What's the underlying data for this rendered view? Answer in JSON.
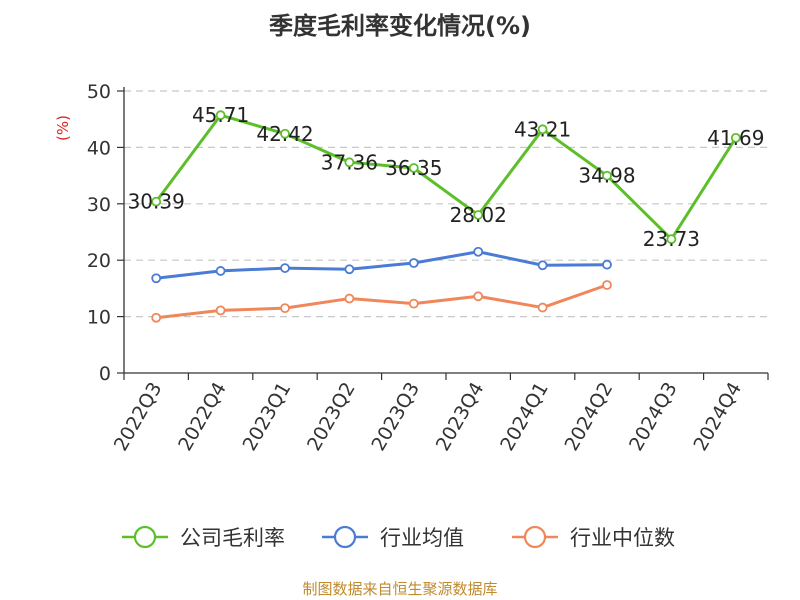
{
  "chart_data": {
    "type": "line",
    "title": "季度毛利率变化情况(%)",
    "ylabel": "(%)",
    "ylim": [
      0,
      50
    ],
    "yticks": [
      0,
      10,
      20,
      30,
      40,
      50
    ],
    "grid": true,
    "legend_position": "bottom",
    "categories": [
      "2022Q3",
      "2022Q4",
      "2023Q1",
      "2023Q2",
      "2023Q3",
      "2023Q4",
      "2024Q1",
      "2024Q2",
      "2024Q3",
      "2024Q4"
    ],
    "series": [
      {
        "name": "公司毛利率",
        "color": "#5cbf2a",
        "labels": true,
        "values": [
          30.39,
          45.71,
          42.42,
          37.36,
          36.35,
          28.02,
          43.21,
          34.98,
          23.73,
          41.69
        ]
      },
      {
        "name": "行业均值",
        "color": "#4a7bd5",
        "labels": false,
        "values": [
          16.8,
          18.1,
          18.6,
          18.4,
          19.5,
          21.5,
          19.1,
          19.2,
          null,
          null
        ]
      },
      {
        "name": "行业中位数",
        "color": "#f0875a",
        "labels": false,
        "values": [
          9.8,
          11.1,
          11.5,
          13.2,
          12.3,
          13.6,
          11.6,
          15.6,
          null,
          null
        ]
      }
    ],
    "source": "制图数据来自恒生聚源数据库"
  }
}
